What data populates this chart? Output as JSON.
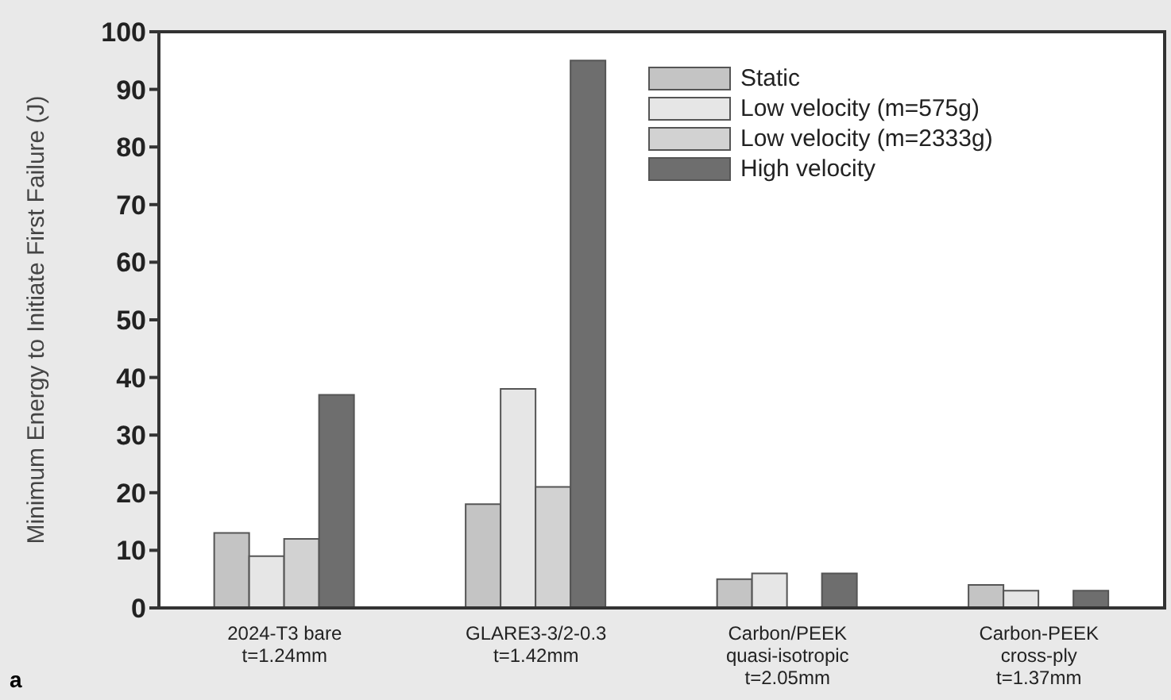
{
  "chart_data": {
    "type": "bar",
    "ylabel": "Minimum Energy to Initiate First Failure (J)",
    "categories": [
      "2024-T3 bare\nt=1.24mm",
      "GLARE3-3/2-0.3\nt=1.42mm",
      "Carbon/PEEK\nquasi-isotropic\nt=2.05mm",
      "Carbon-PEEK\ncross-ply\nt=1.37mm"
    ],
    "series": [
      {
        "name": "Static",
        "color": "#c4c4c4",
        "values": [
          13,
          18,
          5,
          4
        ]
      },
      {
        "name": "Low velocity (m=575g)",
        "color": "#e6e6e6",
        "values": [
          9,
          38,
          6,
          3
        ]
      },
      {
        "name": "Low velocity (m=2333g)",
        "color": "#d2d2d2",
        "values": [
          12,
          21,
          null,
          null
        ]
      },
      {
        "name": "High velocity",
        "color": "#6e6e6e",
        "values": [
          37,
          95,
          6,
          3
        ]
      }
    ],
    "ylim": [
      0,
      100
    ],
    "yticks": [
      0,
      10,
      20,
      30,
      40,
      50,
      60,
      70,
      80,
      90,
      100
    ],
    "legend": "top right",
    "annotations": [
      "a"
    ]
  }
}
